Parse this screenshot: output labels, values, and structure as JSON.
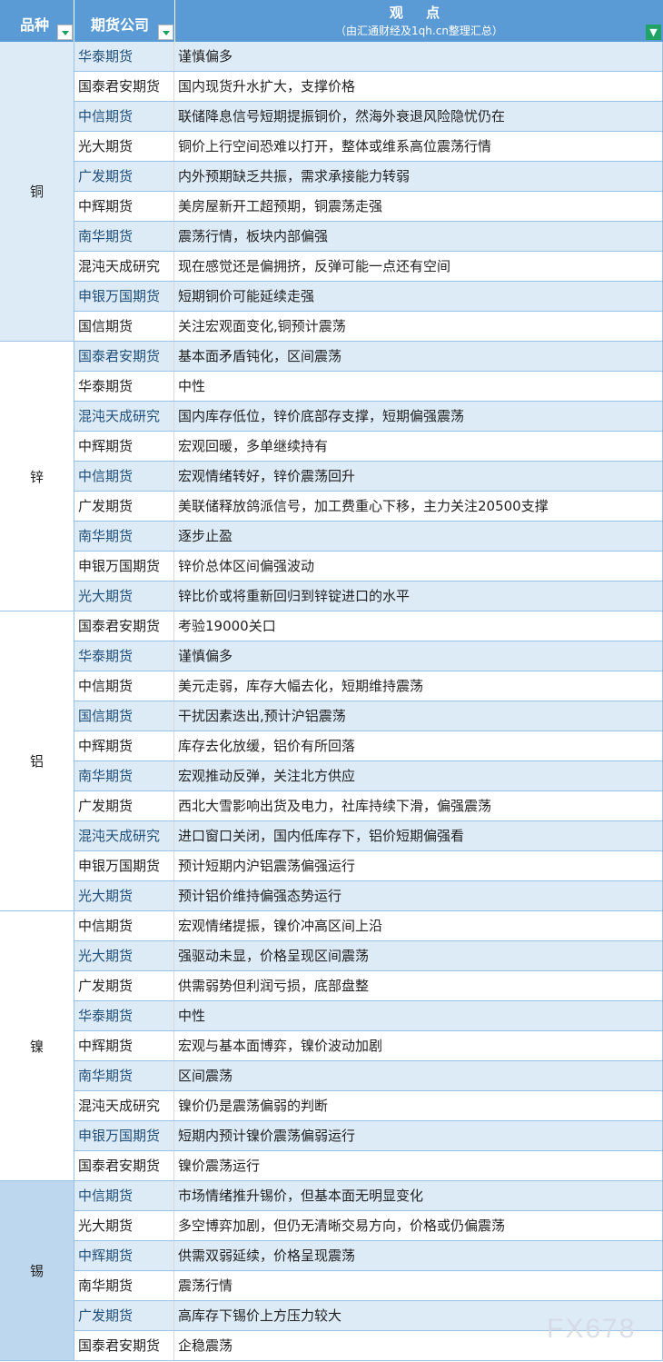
{
  "header": {
    "category": "品种",
    "company": "期货公司",
    "view_title": "观  点",
    "view_subtitle": "（由汇通财经及1qh.cn整理汇总）",
    "filter_icon": "filter-icon",
    "dropdown_icon": "dropdown-arrow-icon"
  },
  "colors": {
    "header": "#5b9bd5",
    "shaded_row": "#ddebf7",
    "tin_category": "#bdd7ee"
  },
  "groups": [
    {
      "name": "铜",
      "bg": "#ddebf7",
      "rows": [
        [
          "华泰期货",
          "谨慎偏多"
        ],
        [
          "国泰君安期货",
          "国内现货升水扩大，支撑价格"
        ],
        [
          "中信期货",
          "联储降息信号短期提振铜价，然海外衰退风险隐忧仍在"
        ],
        [
          "光大期货",
          "铜价上行空间恐难以打开，整体或维系高位震荡行情"
        ],
        [
          "广发期货",
          "内外预期缺乏共振，需求承接能力转弱"
        ],
        [
          "中辉期货",
          "美房屋新开工超预期，铜震荡走强"
        ],
        [
          "南华期货",
          "震荡行情，板块内部偏强"
        ],
        [
          "混沌天成研究",
          "现在感觉还是偏拥挤，反弹可能一点还有空间"
        ],
        [
          "申银万国期货",
          "短期铜价可能延续走强"
        ],
        [
          "国信期货",
          "关注宏观面变化,铜预计震荡"
        ]
      ]
    },
    {
      "name": "锌",
      "bg": "#ffffff",
      "rows": [
        [
          "国泰君安期货",
          "基本面矛盾钝化，区间震荡"
        ],
        [
          "华泰期货",
          "中性"
        ],
        [
          "混沌天成研究",
          "国内库存低位，锌价底部存支撑，短期偏强震荡"
        ],
        [
          "中辉期货",
          "宏观回暖，多单继续持有"
        ],
        [
          "中信期货",
          "宏观情绪转好，锌价震荡回升"
        ],
        [
          "广发期货",
          "美联储释放鸽派信号，加工费重心下移，主力关注20500支撑"
        ],
        [
          "南华期货",
          "逐步止盈"
        ],
        [
          "申银万国期货",
          "锌价总体区间偏强波动"
        ],
        [
          "光大期货",
          "锌比价或将重新回归到锌锭进口的水平"
        ]
      ]
    },
    {
      "name": "铝",
      "bg": "#ffffff",
      "rows": [
        [
          "国泰君安期货",
          "考验19000关口"
        ],
        [
          "华泰期货",
          "谨慎偏多"
        ],
        [
          "中信期货",
          "美元走弱，库存大幅去化，短期维持震荡"
        ],
        [
          "国信期货",
          "干扰因素迭出,预计沪铝震荡"
        ],
        [
          "中辉期货",
          "库存去化放缓，铝价有所回落"
        ],
        [
          "南华期货",
          "宏观推动反弹，关注北方供应"
        ],
        [
          "广发期货",
          "西北大雪影响出货及电力，社库持续下滑，偏强震荡"
        ],
        [
          "混沌天成研究",
          "进口窗口关闭，国内低库存下，铝价短期偏强看"
        ],
        [
          "申银万国期货",
          "预计短期内沪铝震荡偏强运行"
        ],
        [
          "光大期货",
          "预计铝价维持偏强态势运行"
        ]
      ]
    },
    {
      "name": "镍",
      "bg": "#ffffff",
      "rows": [
        [
          "中信期货",
          "宏观情绪提振，镍价冲高区间上沿"
        ],
        [
          "光大期货",
          "强驱动未显，价格呈现区间震荡"
        ],
        [
          "广发期货",
          "供需弱势但利润亏损，底部盘整"
        ],
        [
          "华泰期货",
          "中性"
        ],
        [
          "中辉期货",
          "宏观与基本面博弈，镍价波动加剧"
        ],
        [
          "南华期货",
          "区间震荡"
        ],
        [
          "混沌天成研究",
          "镍价仍是震荡偏弱的判断"
        ],
        [
          "申银万国期货",
          "短期内预计镍价震荡偏弱运行"
        ],
        [
          "国泰君安期货",
          "镍价震荡运行"
        ]
      ]
    },
    {
      "name": "锡",
      "bg": "#bdd7ee",
      "rows": [
        [
          "中信期货",
          "市场情绪推升锡价，但基本面无明显变化"
        ],
        [
          "光大期货",
          "多空博弈加剧，但仍无清晰交易方向，价格或仍偏震荡"
        ],
        [
          "中辉期货",
          "供需双弱延续，价格呈现震荡"
        ],
        [
          "南华期货",
          "震荡行情"
        ],
        [
          "广发期货",
          "高库存下锡价上方压力较大"
        ],
        [
          "国泰君安期货",
          "企稳震荡"
        ]
      ]
    }
  ],
  "watermark": "FX678"
}
